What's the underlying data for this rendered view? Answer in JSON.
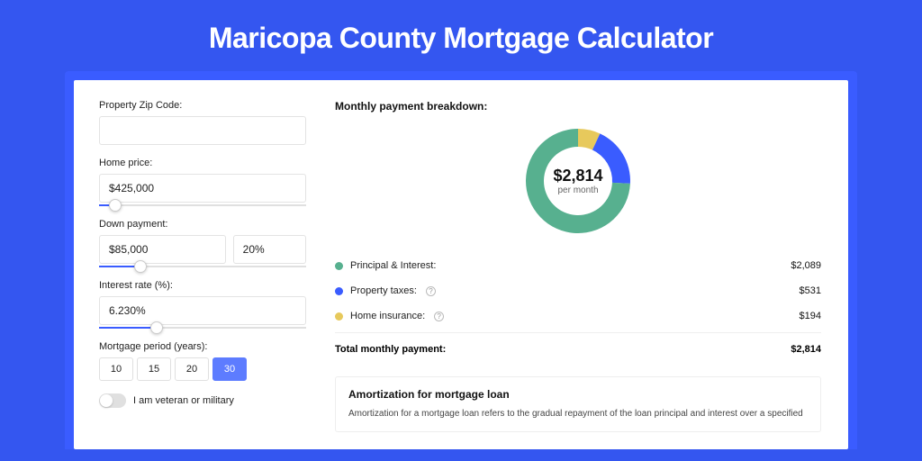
{
  "page": {
    "title": "Maricopa County Mortgage Calculator"
  },
  "colors": {
    "page_bg": "#3456f0",
    "outer_card_bg": "#3a5cff",
    "card_bg": "#ffffff",
    "slider_fill": "#3a5cff",
    "period_active_bg": "#5d7cff",
    "donut_principal": "#57b08f",
    "donut_tax": "#3a5cff",
    "donut_insurance": "#e7c95c"
  },
  "form": {
    "zip": {
      "label": "Property Zip Code:",
      "value": ""
    },
    "home_price": {
      "label": "Home price:",
      "value": "$425,000",
      "slider_pct": 8
    },
    "down_payment": {
      "label": "Down payment:",
      "value": "$85,000",
      "pct_value": "20%",
      "slider_pct": 20
    },
    "interest": {
      "label": "Interest rate (%):",
      "value": "6.230%",
      "slider_pct": 28
    },
    "period": {
      "label": "Mortgage period (years):",
      "options": [
        "10",
        "15",
        "20",
        "30"
      ],
      "selected": "30"
    },
    "veteran": {
      "label": "I am veteran or military",
      "checked": false
    }
  },
  "breakdown": {
    "title": "Monthly payment breakdown:",
    "donut": {
      "amount": "$2,814",
      "sub": "per month",
      "slices": [
        {
          "key": "insurance",
          "pct": 6.9,
          "color": "#e7c95c"
        },
        {
          "key": "tax",
          "pct": 18.9,
          "color": "#3a5cff"
        },
        {
          "key": "principal",
          "pct": 74.2,
          "color": "#57b08f"
        }
      ]
    },
    "legend": [
      {
        "label": "Principal & Interest:",
        "value": "$2,089",
        "color": "#57b08f",
        "help": false
      },
      {
        "label": "Property taxes:",
        "value": "$531",
        "color": "#3a5cff",
        "help": true
      },
      {
        "label": "Home insurance:",
        "value": "$194",
        "color": "#e7c95c",
        "help": true
      }
    ],
    "total": {
      "label": "Total monthly payment:",
      "value": "$2,814"
    }
  },
  "amort": {
    "title": "Amortization for mortgage loan",
    "text": "Amortization for a mortgage loan refers to the gradual repayment of the loan principal and interest over a specified"
  }
}
